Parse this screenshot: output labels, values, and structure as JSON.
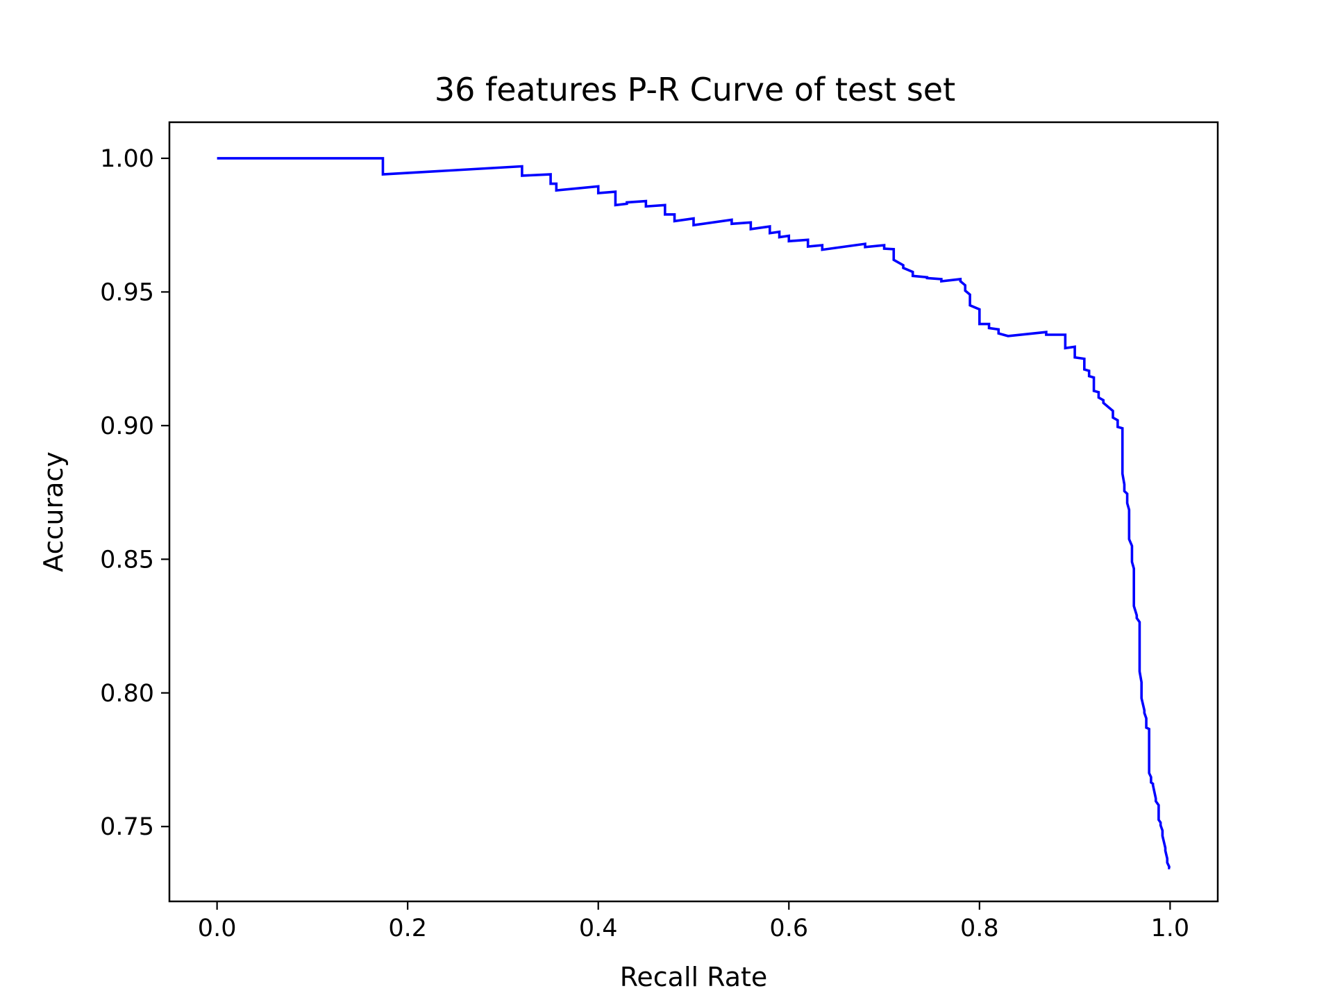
{
  "chart_data": {
    "type": "line",
    "title": "36 features P-R Curve of test set",
    "xlabel": "Recall Rate",
    "ylabel": "Accuracy",
    "xlim": [
      -0.05,
      1.05
    ],
    "ylim": [
      0.722,
      1.0135
    ],
    "x_ticks": [
      0.0,
      0.2,
      0.4,
      0.6,
      0.8,
      1.0
    ],
    "x_tick_labels": [
      "0.0",
      "0.2",
      "0.4",
      "0.6",
      "0.8",
      "1.0"
    ],
    "y_ticks": [
      0.75,
      0.8,
      0.85,
      0.9,
      0.95,
      1.0
    ],
    "y_tick_labels": [
      "0.75",
      "0.80",
      "0.85",
      "0.90",
      "0.95",
      "1.00"
    ],
    "grid": false,
    "series": [
      {
        "color": "#0000ff",
        "x": [
          0.0,
          0.174,
          0.174,
          0.32,
          0.32,
          0.35,
          0.35,
          0.356,
          0.356,
          0.4,
          0.4,
          0.418,
          0.418,
          0.43,
          0.43,
          0.45,
          0.45,
          0.47,
          0.47,
          0.48,
          0.48,
          0.5,
          0.5,
          0.54,
          0.54,
          0.56,
          0.56,
          0.58,
          0.58,
          0.59,
          0.59,
          0.6,
          0.6,
          0.62,
          0.62,
          0.635,
          0.635,
          0.68,
          0.68,
          0.7,
          0.7,
          0.71,
          0.71,
          0.72,
          0.72,
          0.73,
          0.73,
          0.745,
          0.745,
          0.76,
          0.76,
          0.78,
          0.78,
          0.785,
          0.785,
          0.79,
          0.79,
          0.8,
          0.8,
          0.81,
          0.81,
          0.82,
          0.82,
          0.83,
          0.83,
          0.87,
          0.87,
          0.88,
          0.88,
          0.89,
          0.89,
          0.9,
          0.9,
          0.91,
          0.91,
          0.915,
          0.915,
          0.92,
          0.92,
          0.925,
          0.925,
          0.93,
          0.93,
          0.94,
          0.94,
          0.945,
          0.945,
          0.95,
          0.95,
          0.952,
          0.952,
          0.955,
          0.955,
          0.957,
          0.957,
          0.96,
          0.96,
          0.962,
          0.962,
          0.965,
          0.965,
          0.968,
          0.968,
          0.97,
          0.97,
          0.973,
          0.973,
          0.975,
          0.975,
          0.978,
          0.978,
          0.98,
          0.98,
          0.982,
          0.982,
          0.985,
          0.985,
          0.988,
          0.988,
          0.99,
          0.99,
          0.992,
          0.992,
          0.995,
          0.995,
          0.997,
          0.997,
          0.999,
          0.999,
          1.0,
          1.0
        ],
        "y": [
          1.0,
          1.0,
          0.994,
          0.997,
          0.9935,
          0.994,
          0.9905,
          0.9905,
          0.988,
          0.9895,
          0.987,
          0.9875,
          0.9825,
          0.983,
          0.9835,
          0.984,
          0.982,
          0.9825,
          0.979,
          0.979,
          0.9765,
          0.9775,
          0.975,
          0.977,
          0.9755,
          0.976,
          0.9735,
          0.9745,
          0.972,
          0.9725,
          0.9705,
          0.971,
          0.969,
          0.9695,
          0.967,
          0.9675,
          0.9658,
          0.968,
          0.9668,
          0.9675,
          0.9662,
          0.966,
          0.962,
          0.96,
          0.959,
          0.9575,
          0.956,
          0.9555,
          0.9552,
          0.9548,
          0.954,
          0.9548,
          0.954,
          0.9525,
          0.9505,
          0.949,
          0.945,
          0.9435,
          0.938,
          0.938,
          0.9365,
          0.936,
          0.9345,
          0.9335,
          0.9335,
          0.935,
          0.934,
          0.934,
          0.934,
          0.934,
          0.929,
          0.9295,
          0.9255,
          0.925,
          0.921,
          0.9205,
          0.9185,
          0.918,
          0.913,
          0.9125,
          0.9105,
          0.9095,
          0.9085,
          0.9055,
          0.903,
          0.902,
          0.8995,
          0.899,
          0.882,
          0.878,
          0.8755,
          0.8745,
          0.871,
          0.8685,
          0.8575,
          0.855,
          0.849,
          0.8465,
          0.8325,
          0.829,
          0.828,
          0.8265,
          0.808,
          0.804,
          0.798,
          0.7935,
          0.7925,
          0.7905,
          0.787,
          0.7865,
          0.77,
          0.7685,
          0.7665,
          0.766,
          0.7655,
          0.7605,
          0.7595,
          0.758,
          0.7525,
          0.7515,
          0.7505,
          0.7485,
          0.7465,
          0.742,
          0.741,
          0.738,
          0.7365,
          0.735,
          0.7345,
          0.7345,
          0.7345
        ]
      }
    ]
  }
}
